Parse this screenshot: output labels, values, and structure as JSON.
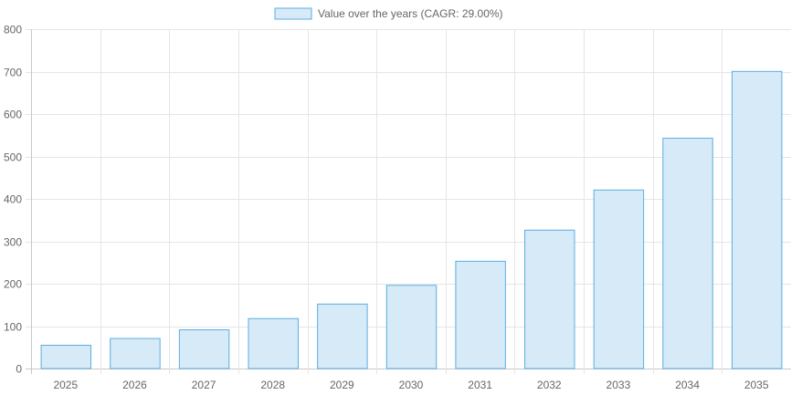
{
  "chart_data": {
    "type": "bar",
    "title": "",
    "legend": {
      "label": "Value over the years (CAGR: 29.00%)",
      "position": "top"
    },
    "categories": [
      "2025",
      "2026",
      "2027",
      "2028",
      "2029",
      "2030",
      "2031",
      "2032",
      "2033",
      "2034",
      "2035"
    ],
    "series": [
      {
        "name": "Value over the years (CAGR: 29.00%)",
        "values": [
          54.9,
          70.8,
          91.3,
          117.8,
          152.0,
          196.1,
          252.9,
          326.3,
          420.9,
          543.0,
          700.4
        ]
      }
    ],
    "yticks": [
      "0",
      "100",
      "200",
      "300",
      "400",
      "500",
      "600",
      "700",
      "800"
    ],
    "ylim": [
      0,
      800
    ],
    "xlabel": "",
    "ylabel": "",
    "grid": true,
    "colors": {
      "fill": "#d6eaf8",
      "border": "#5dade2",
      "grid": "#e5e5e5",
      "text": "#666666"
    }
  }
}
